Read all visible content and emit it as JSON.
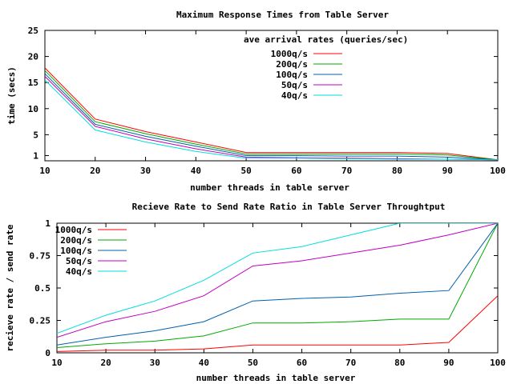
{
  "chart_data": [
    {
      "type": "line",
      "title": "Maximum Response Times from Table Server",
      "xlabel": "number threads in table server",
      "ylabel": "time (secs)",
      "x": [
        10,
        20,
        30,
        40,
        50,
        60,
        70,
        80,
        90,
        100
      ],
      "xlim": [
        10,
        100
      ],
      "ylim": [
        0,
        25
      ],
      "xticks": [
        "10",
        "20",
        "30",
        "40",
        "50",
        "60",
        "70",
        "80",
        "90",
        "100"
      ],
      "yticks": [
        1,
        5,
        10,
        15,
        20,
        25
      ],
      "ytick_labels": [
        "1",
        "5",
        "10",
        "15",
        "20",
        "25"
      ],
      "legend_title": "ave arrival rates (queries/sec)",
      "legend_position": "top-right",
      "grid": false,
      "series": [
        {
          "name": "1000q/s",
          "color": "#ff0000",
          "values": [
            17.8,
            8.0,
            5.6,
            3.6,
            1.6,
            1.6,
            1.6,
            1.6,
            1.4,
            0.2
          ]
        },
        {
          "name": "200q/s",
          "color": "#00aa00",
          "values": [
            17.3,
            7.5,
            5.2,
            3.2,
            1.3,
            1.3,
            1.3,
            1.3,
            1.1,
            0.2
          ]
        },
        {
          "name": "100q/s",
          "color": "#0060ad",
          "values": [
            16.7,
            7.0,
            4.7,
            2.8,
            1.0,
            1.0,
            0.9,
            0.9,
            0.7,
            0.2
          ]
        },
        {
          "name": "50q/s",
          "color": "#c000c0",
          "values": [
            16.2,
            6.6,
            4.2,
            2.3,
            0.7,
            0.6,
            0.5,
            0.4,
            0.3,
            0.2
          ]
        },
        {
          "name": "40q/s",
          "color": "#00dddd",
          "values": [
            15.5,
            5.9,
            3.6,
            1.8,
            0.5,
            0.5,
            0.4,
            0.3,
            0.3,
            0.2
          ]
        }
      ]
    },
    {
      "type": "line",
      "title": "Recieve Rate to Send Rate Ratio in Table Server Throughtput",
      "xlabel": "number threads in table server",
      "ylabel": "recieve rate / send rate",
      "x": [
        10,
        20,
        30,
        40,
        50,
        60,
        70,
        80,
        90,
        100
      ],
      "xlim": [
        10,
        100
      ],
      "ylim": [
        0,
        1
      ],
      "xticks": [
        "10",
        "20",
        "30",
        "40",
        "50",
        "60",
        "70",
        "80",
        "90",
        "100"
      ],
      "yticks": [
        0,
        0.25,
        0.5,
        0.75,
        1
      ],
      "ytick_labels": [
        "0",
        "0.25",
        "0.5",
        "0.75",
        "1"
      ],
      "legend_position": "top-left",
      "grid": false,
      "series": [
        {
          "name": "1000q/s",
          "color": "#ff0000",
          "values": [
            0.01,
            0.02,
            0.02,
            0.03,
            0.06,
            0.06,
            0.06,
            0.06,
            0.08,
            0.44
          ]
        },
        {
          "name": "200q/s",
          "color": "#00aa00",
          "values": [
            0.04,
            0.07,
            0.09,
            0.13,
            0.23,
            0.23,
            0.24,
            0.26,
            0.26,
            1.0
          ]
        },
        {
          "name": "100q/s",
          "color": "#0060ad",
          "values": [
            0.06,
            0.12,
            0.17,
            0.24,
            0.4,
            0.42,
            0.43,
            0.46,
            0.48,
            1.0
          ]
        },
        {
          "name": "50q/s",
          "color": "#c000c0",
          "values": [
            0.12,
            0.24,
            0.32,
            0.44,
            0.67,
            0.71,
            0.77,
            0.83,
            0.91,
            1.0
          ]
        },
        {
          "name": "40q/s",
          "color": "#00dddd",
          "values": [
            0.15,
            0.29,
            0.4,
            0.56,
            0.77,
            0.82,
            0.91,
            1.0,
            1.0,
            1.0
          ]
        }
      ]
    }
  ]
}
